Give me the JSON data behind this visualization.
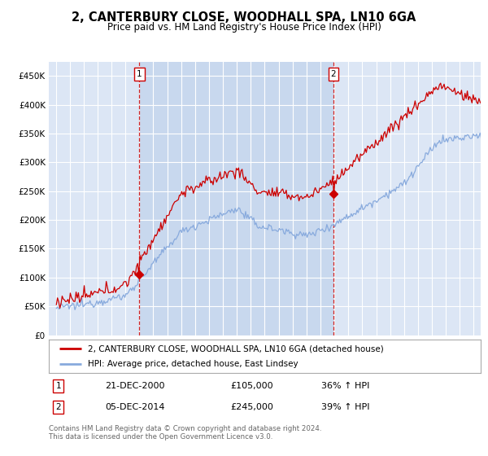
{
  "title": "2, CANTERBURY CLOSE, WOODHALL SPA, LN10 6GA",
  "subtitle": "Price paid vs. HM Land Registry's House Price Index (HPI)",
  "background_color": "#ffffff",
  "plot_bg_color": "#dce6f5",
  "plot_bg_between_color": "#c8d8ee",
  "grid_color": "#ffffff",
  "sale1_date_label": "21-DEC-2000",
  "sale1_price": 105000,
  "sale1_hpi_text": "36% ↑ HPI",
  "sale2_date_label": "05-DEC-2014",
  "sale2_price": 245000,
  "sale2_hpi_text": "39% ↑ HPI",
  "legend_line1": "2, CANTERBURY CLOSE, WOODHALL SPA, LN10 6GA (detached house)",
  "legend_line2": "HPI: Average price, detached house, East Lindsey",
  "footnote": "Contains HM Land Registry data © Crown copyright and database right 2024.\nThis data is licensed under the Open Government Licence v3.0.",
  "line1_color": "#cc0000",
  "line2_color": "#88aadd",
  "sale1_x": 2001.0,
  "sale2_x": 2014.92,
  "ylim_min": 0,
  "ylim_max": 475000,
  "yticks": [
    0,
    50000,
    100000,
    150000,
    200000,
    250000,
    300000,
    350000,
    400000,
    450000
  ],
  "xlim_min": 1994.5,
  "xlim_max": 2025.5
}
